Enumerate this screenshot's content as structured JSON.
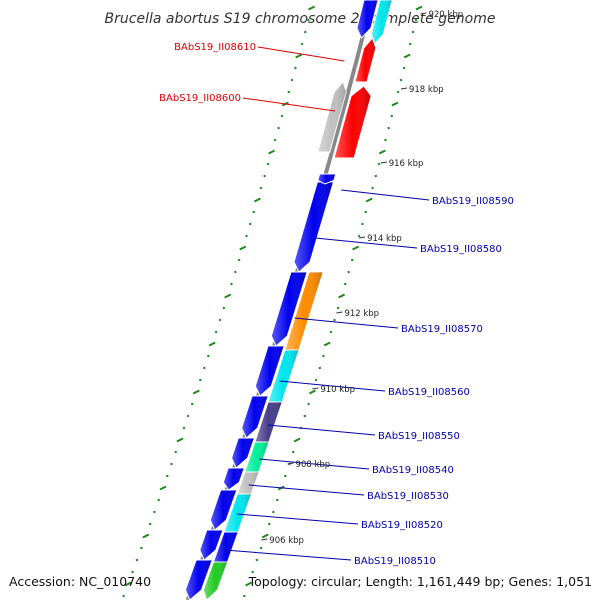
{
  "title": "Brucella abortus S19 chromosome 2, complete genome",
  "footer": {
    "accession": "Accession: NC_010740",
    "summary": "Topology: circular; Length: 1,161,449 bp; Genes: 1,051"
  },
  "ticks": [
    {
      "label": "920 kbp",
      "faint": true
    },
    {
      "label": "918 kbp"
    },
    {
      "label": "916 kbp"
    },
    {
      "label": "914 kbp"
    },
    {
      "label": "912 kbp"
    },
    {
      "label": "910 kbp"
    },
    {
      "label": "908 kbp"
    },
    {
      "label": "906 kbp"
    }
  ],
  "genes_outer": [
    {
      "label": "BAbS19_II08610",
      "color": "#ff0000",
      "strand": "reverse"
    },
    {
      "label": "BAbS19_II08600",
      "color": "#ff0000",
      "strand": "reverse"
    }
  ],
  "genes_inner": [
    {
      "label": "BAbS19_II08590",
      "color": "#0000ee",
      "strand": "forward"
    },
    {
      "label": "BAbS19_II08580",
      "color": "#ff8c00",
      "strand": "forward"
    },
    {
      "label": "BAbS19_II08570",
      "color": "#00e5ee",
      "strand": "forward"
    },
    {
      "label": "BAbS19_II08560",
      "color": "#483d8b",
      "strand": "forward"
    },
    {
      "label": "BAbS19_II08550",
      "color": "#00ee99",
      "strand": "forward"
    },
    {
      "label": "BAbS19_II08540",
      "color": "#c0c0c0",
      "strand": "forward"
    },
    {
      "label": "BAbS19_II08530",
      "color": "#00e5ee",
      "strand": "forward"
    },
    {
      "label": "BAbS19_II08520",
      "color": "#0000ee",
      "strand": "forward"
    },
    {
      "label": "BAbS19_II08510",
      "color": "#22cc22",
      "strand": "forward"
    }
  ],
  "colors": {
    "outer_label": "#dd0000",
    "inner_label": "#0000aa",
    "backbone": "#888888",
    "dots": "#1a8a1a",
    "forward_gene": "#0000ee",
    "gray_gene": "#c0c0c0"
  }
}
